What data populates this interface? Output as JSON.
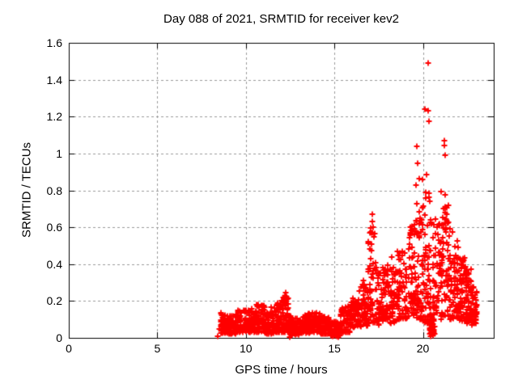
{
  "chart_data": {
    "type": "scatter",
    "title": "Day 088 of 2021, SRMTID for receiver kev2",
    "xlabel": "GPS time / hours",
    "ylabel": "SRMTID / TECUs",
    "xlim": [
      0,
      24
    ],
    "ylim": [
      0,
      1.6
    ],
    "xticks": {
      "values": [
        0,
        5,
        10,
        15,
        20
      ],
      "labels": [
        "0",
        "5",
        "10",
        "15",
        "20"
      ]
    },
    "yticks": {
      "values": [
        0,
        0.2,
        0.4,
        0.6,
        0.8,
        1.0,
        1.2,
        1.4,
        1.6
      ],
      "labels": [
        "0",
        "0.2",
        "0.4",
        "0.6",
        "0.8",
        "1",
        "1.2",
        "1.4",
        "1.6"
      ]
    },
    "grid": true,
    "legend": "none",
    "colors": {
      "marker": "#ff0000",
      "grid": "#9a9a9a",
      "axis": "#000000",
      "background": "#ffffff"
    },
    "marker": {
      "shape": "plus",
      "size": 7,
      "stroke": 1.8
    },
    "series": [
      {
        "name": "SRMTID",
        "color": "#ff0000",
        "segment_fields": [
          "x_start_hours",
          "x_end_hours",
          "y_min_TECU",
          "y_max_TECU",
          "count",
          "low_bias"
        ],
        "band_segments": [
          [
            8.55,
            9.0,
            0.025,
            0.14,
            55,
            1.4
          ],
          [
            9.0,
            9.5,
            0.02,
            0.13,
            60,
            1.4
          ],
          [
            9.5,
            10.0,
            0.03,
            0.15,
            60,
            1.4
          ],
          [
            10.0,
            10.5,
            0.03,
            0.16,
            60,
            1.4
          ],
          [
            10.5,
            11.1,
            0.03,
            0.18,
            70,
            1.4
          ],
          [
            11.1,
            11.6,
            0.02,
            0.14,
            60,
            1.4
          ],
          [
            11.6,
            12.0,
            0.03,
            0.19,
            50,
            1.4
          ],
          [
            12.0,
            12.45,
            0.03,
            0.23,
            55,
            1.5
          ],
          [
            12.45,
            13.0,
            0.015,
            0.12,
            65,
            1.3
          ],
          [
            13.0,
            13.6,
            0.025,
            0.13,
            70,
            1.3
          ],
          [
            13.6,
            14.2,
            0.03,
            0.14,
            70,
            1.3
          ],
          [
            14.2,
            14.8,
            0.02,
            0.12,
            70,
            1.3
          ],
          [
            14.8,
            15.35,
            0.01,
            0.09,
            60,
            1.3
          ],
          [
            15.35,
            15.9,
            0.03,
            0.17,
            65,
            1.3
          ],
          [
            15.9,
            16.4,
            0.05,
            0.22,
            60,
            1.3
          ],
          [
            16.4,
            16.9,
            0.06,
            0.3,
            60,
            1.2
          ],
          [
            16.9,
            17.35,
            0.08,
            0.6,
            55,
            1.6
          ],
          [
            17.35,
            17.9,
            0.07,
            0.38,
            60,
            1.3
          ],
          [
            17.9,
            18.5,
            0.08,
            0.42,
            65,
            1.3
          ],
          [
            18.5,
            19.1,
            0.1,
            0.48,
            65,
            1.3
          ],
          [
            19.1,
            19.6,
            0.12,
            0.62,
            55,
            1.3
          ],
          [
            19.6,
            20.0,
            0.1,
            0.75,
            55,
            1.4
          ],
          [
            20.0,
            20.45,
            0.08,
            0.92,
            60,
            1.5
          ],
          [
            20.35,
            20.65,
            0.02,
            0.14,
            35,
            1.2
          ],
          [
            20.55,
            21.05,
            0.1,
            0.65,
            55,
            1.3
          ],
          [
            21.05,
            21.45,
            0.12,
            0.72,
            50,
            1.3
          ],
          [
            21.45,
            21.95,
            0.1,
            0.58,
            60,
            1.3
          ],
          [
            21.95,
            22.4,
            0.09,
            0.45,
            60,
            1.3
          ],
          [
            22.4,
            22.75,
            0.08,
            0.38,
            55,
            1.3
          ],
          [
            22.75,
            23.05,
            0.07,
            0.28,
            45,
            1.3
          ]
        ],
        "points": [
          [
            8.42,
            0.008
          ],
          [
            8.5,
            0.05
          ],
          [
            11.02,
            0.175
          ],
          [
            11.45,
            0.165
          ],
          [
            11.78,
            0.19
          ],
          [
            12.25,
            0.245
          ],
          [
            12.3,
            0.225
          ],
          [
            12.33,
            0.21
          ],
          [
            12.5,
            0.006
          ],
          [
            12.55,
            0.012
          ],
          [
            15.2,
            0.006
          ],
          [
            16.62,
            0.31
          ],
          [
            16.7,
            0.29
          ],
          [
            17.12,
            0.67
          ],
          [
            17.15,
            0.63
          ],
          [
            17.18,
            0.6
          ],
          [
            17.1,
            0.57
          ],
          [
            17.22,
            0.55
          ],
          [
            18.25,
            0.44
          ],
          [
            18.85,
            0.47
          ],
          [
            19.3,
            0.6
          ],
          [
            19.5,
            0.56
          ],
          [
            19.63,
            0.83
          ],
          [
            19.66,
            1.04
          ],
          [
            19.7,
            0.945
          ],
          [
            19.78,
            0.865
          ],
          [
            19.99,
            0.858
          ],
          [
            20.12,
            1.24
          ],
          [
            20.29,
            1.49
          ],
          [
            20.31,
            1.23
          ],
          [
            20.33,
            1.175
          ],
          [
            20.15,
            0.79
          ],
          [
            20.4,
            0.74
          ],
          [
            20.45,
            0.64
          ],
          [
            20.5,
            0.62
          ],
          [
            20.45,
            0.01
          ],
          [
            20.55,
            0.015
          ],
          [
            21.05,
            0.795
          ],
          [
            21.24,
            0.777
          ],
          [
            21.18,
            0.7
          ],
          [
            21.1,
            0.655
          ],
          [
            21.32,
            0.645
          ],
          [
            21.2,
            1.07
          ],
          [
            21.22,
            1.045
          ],
          [
            21.26,
            0.99
          ],
          [
            21.55,
            0.59
          ],
          [
            21.66,
            0.575
          ],
          [
            21.97,
            0.49
          ],
          [
            22.3,
            0.42
          ],
          [
            22.6,
            0.35
          ]
        ]
      }
    ]
  }
}
